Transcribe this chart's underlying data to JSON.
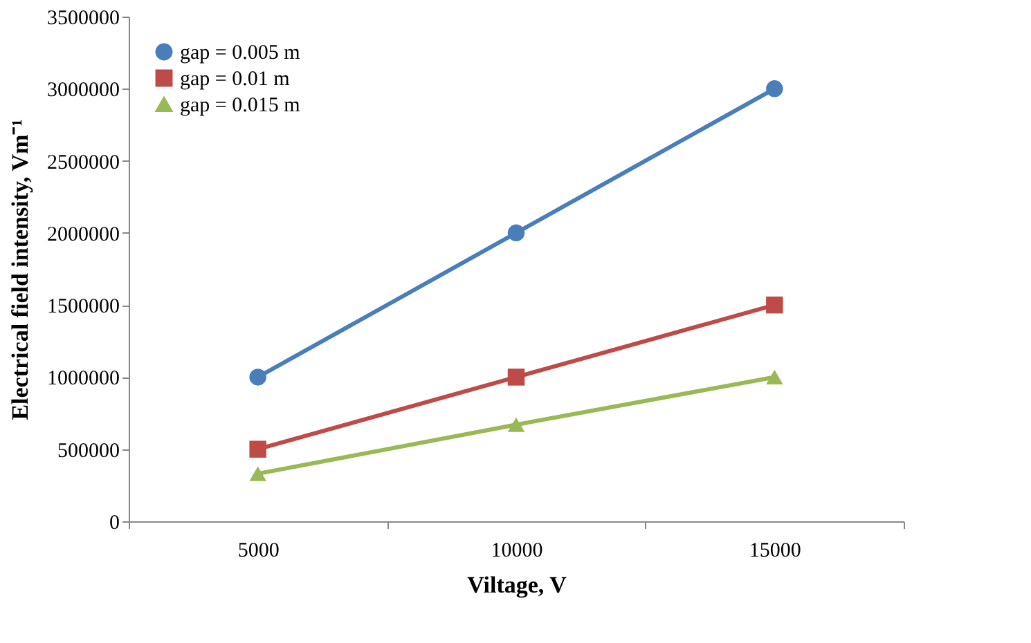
{
  "chart_data": {
    "type": "line",
    "xlabel": "Viltage, V",
    "ylabel": "Electrical field intensity, Vm⁻¹",
    "categories": [
      "5000",
      "10000",
      "15000"
    ],
    "series": [
      {
        "name": "gap = 0.005 m",
        "color": "#4a7ebb",
        "marker": "circle",
        "values": [
          1000000,
          2000000,
          3000000
        ]
      },
      {
        "name": "gap = 0.01 m",
        "color": "#be4b48",
        "marker": "square",
        "values": [
          500000,
          1000000,
          1500000
        ]
      },
      {
        "name": "gap = 0.015 m",
        "color": "#98b954",
        "marker": "triangle",
        "values": [
          330000,
          670000,
          1000000
        ]
      }
    ],
    "ylim": [
      0,
      3500000
    ],
    "yticks": [
      0,
      500000,
      1000000,
      1500000,
      2000000,
      2500000,
      3000000,
      3500000
    ],
    "grid": false,
    "legend": "top left",
    "line_style": "solid"
  }
}
